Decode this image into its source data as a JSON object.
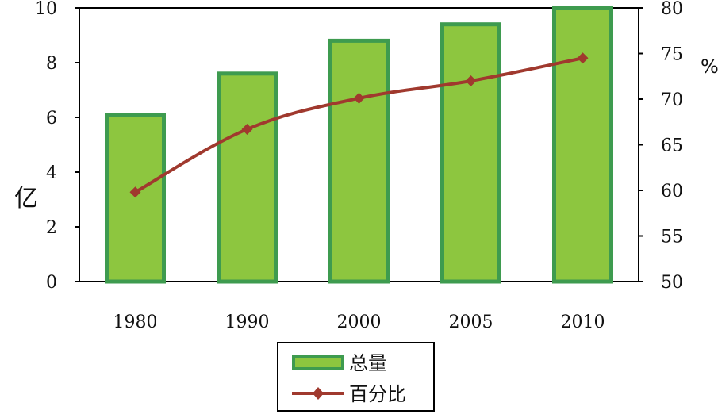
{
  "chart_data": {
    "type": "bar",
    "categories": [
      "1980",
      "1990",
      "2000",
      "2005",
      "2010"
    ],
    "series": [
      {
        "name": "总量",
        "type": "bar",
        "axis": "left",
        "values": [
          6.1,
          7.6,
          8.8,
          9.4,
          10.0
        ],
        "color": "#8DC63F",
        "edge_color": "#3E9B4F"
      },
      {
        "name": "百分比",
        "type": "line",
        "axis": "right",
        "values": [
          59.8,
          66.7,
          70.1,
          72.0,
          74.5
        ],
        "color": "#A0392E",
        "marker": "diamond"
      }
    ],
    "ylabel": "亿",
    "y2label": "%",
    "ylim": [
      0,
      10
    ],
    "y2lim": [
      50,
      80
    ],
    "yticks": [
      "0",
      "2",
      "4",
      "6",
      "8",
      "10"
    ],
    "y2ticks": [
      "50",
      "55",
      "60",
      "65",
      "70",
      "75",
      "80"
    ],
    "grid": false,
    "legend": "bottom-center"
  }
}
